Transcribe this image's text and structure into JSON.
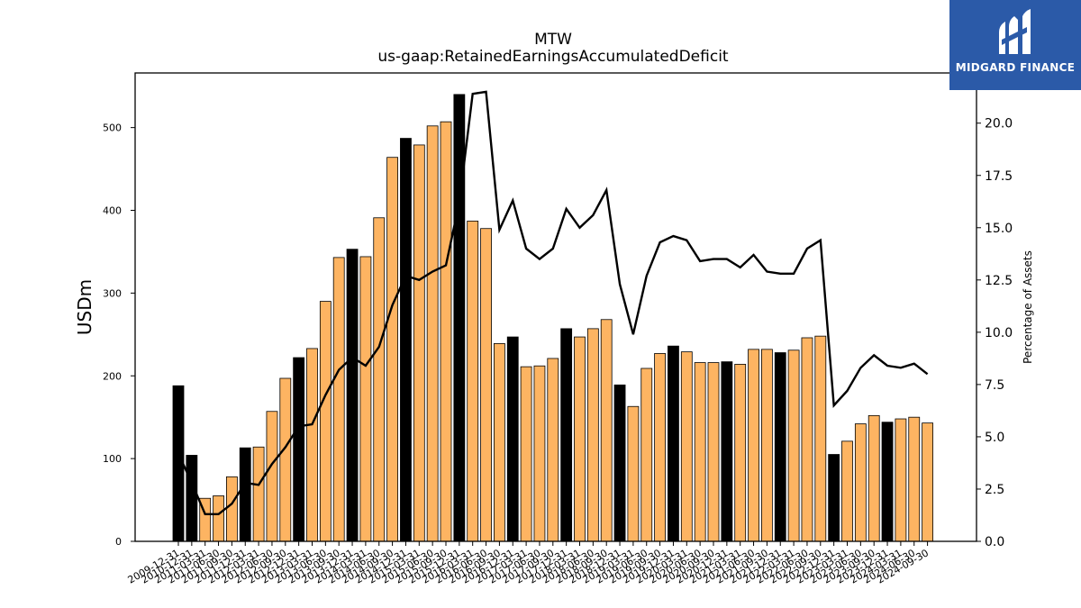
{
  "chart_data": {
    "type": "bar",
    "title": "MTW",
    "subtitle": "us-gaap:RetainedEarningsAccumulatedDeficit",
    "ylabel": "USDm",
    "ylabel_right": "Percentage of Assets",
    "ylim": [
      0,
      566
    ],
    "ylim_right": [
      0,
      22.4
    ],
    "yticks": [
      0,
      100,
      200,
      300,
      400,
      500
    ],
    "yticks_right": [
      "0.0",
      "2.5",
      "5.0",
      "7.5",
      "10.0",
      "12.5",
      "15.0",
      "17.5",
      "20.0"
    ],
    "grid": false,
    "colors": {
      "annual_bar": "#000000",
      "quarter_bar": "#fdb462",
      "line": "#000000"
    },
    "categories": [
      "2009-12-31",
      "2010-12-31",
      "2011-03-31",
      "2011-06-30",
      "2011-09-30",
      "2011-12-31",
      "2012-03-31",
      "2012-06-30",
      "2012-09-30",
      "2012-12-31",
      "2013-03-31",
      "2013-06-30",
      "2013-09-30",
      "2013-12-31",
      "2014-03-31",
      "2014-06-30",
      "2014-09-30",
      "2014-12-31",
      "2015-03-31",
      "2015-06-30",
      "2015-09-30",
      "2015-12-31",
      "2016-03-31",
      "2016-06-30",
      "2016-09-30",
      "2016-12-31",
      "2017-03-31",
      "2017-06-30",
      "2017-09-30",
      "2017-12-31",
      "2018-03-31",
      "2018-06-30",
      "2018-09-30",
      "2018-12-31",
      "2019-03-31",
      "2019-06-30",
      "2019-09-30",
      "2019-12-31",
      "2020-03-31",
      "2020-06-30",
      "2020-09-30",
      "2020-12-31",
      "2021-03-31",
      "2021-06-30",
      "2021-09-30",
      "2021-12-31",
      "2022-03-31",
      "2022-06-30",
      "2022-09-30",
      "2022-12-31",
      "2023-03-31",
      "2023-06-30",
      "2023-09-30",
      "2023-12-31",
      "2024-03-31",
      "2024-06-30",
      "2024-09-30"
    ],
    "series": [
      {
        "kind": "bar",
        "values": [
          188,
          104,
          52,
          55,
          78,
          113,
          114,
          157,
          197,
          222,
          233,
          290,
          343,
          353,
          344,
          391,
          464,
          487,
          479,
          502,
          507,
          540,
          387,
          378,
          239,
          247,
          211,
          212,
          221,
          257,
          247,
          257,
          268,
          189,
          163,
          209,
          227,
          236,
          229,
          216,
          216,
          217,
          214,
          232,
          232,
          228,
          231,
          246,
          248,
          105,
          121,
          142,
          152,
          144,
          148,
          150,
          143
        ],
        "annual": [
          true,
          true,
          false,
          false,
          false,
          true,
          false,
          false,
          false,
          true,
          false,
          false,
          false,
          true,
          false,
          false,
          false,
          true,
          false,
          false,
          false,
          true,
          false,
          false,
          false,
          true,
          false,
          false,
          false,
          true,
          false,
          false,
          false,
          true,
          false,
          false,
          false,
          true,
          false,
          false,
          false,
          true,
          false,
          false,
          false,
          true,
          false,
          false,
          false,
          true,
          false,
          false,
          false,
          true,
          false,
          false,
          false
        ]
      },
      {
        "kind": "line",
        "axis": "right",
        "values": [
          4.2,
          2.8,
          1.3,
          1.3,
          1.8,
          2.8,
          2.7,
          3.7,
          4.5,
          5.5,
          5.6,
          7.0,
          8.2,
          8.8,
          8.4,
          9.3,
          11.3,
          12.7,
          12.5,
          12.9,
          13.2,
          16.2,
          21.4,
          21.5,
          14.9,
          16.3,
          14.0,
          13.5,
          14.0,
          15.9,
          15.0,
          15.6,
          16.8,
          12.3,
          9.9,
          12.7,
          14.3,
          14.6,
          14.4,
          13.4,
          13.5,
          13.5,
          13.1,
          13.7,
          12.9,
          12.8,
          12.8,
          14.0,
          14.4,
          6.5,
          7.2,
          8.3,
          8.9,
          8.4,
          8.3,
          8.5,
          8.0
        ]
      }
    ]
  },
  "logo": {
    "text": "MIDGARD FINANCE"
  }
}
